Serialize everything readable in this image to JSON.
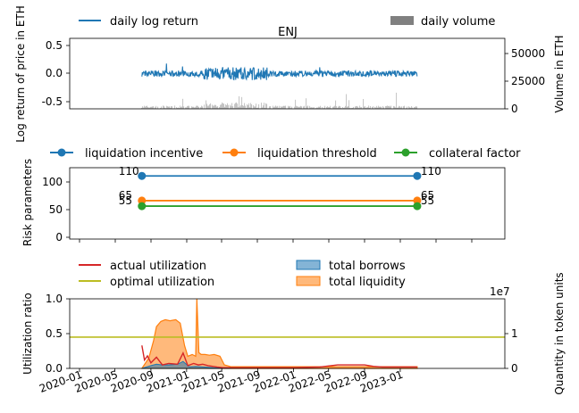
{
  "chart_data": [
    {
      "type": "line",
      "title": "ENJ",
      "ylabel": "Log return of price in ETH",
      "y2label": "Volume in ETH",
      "ylim": [
        -0.6,
        0.6
      ],
      "y2lim": [
        0,
        65000
      ],
      "yticks": [
        "0.5",
        "0.0",
        "-0.5"
      ],
      "y2ticks": [
        "50000",
        "25000",
        "0"
      ],
      "legend": [
        {
          "label": "daily log return",
          "color": "#1f77b4",
          "kind": "line"
        },
        {
          "label": "daily volume",
          "color": "#808080",
          "kind": "patch"
        }
      ],
      "series": [
        {
          "name": "daily log return",
          "color": "#1f77b4",
          "x_range": [
            "2020-08-01",
            "2023-02-28"
          ],
          "values_approx": {
            "typical_abs": 0.05,
            "max": 0.38,
            "min": -0.22
          }
        },
        {
          "name": "daily volume",
          "color": "#808080",
          "x_range": [
            "2020-08-01",
            "2023-02-28"
          ],
          "values_approx": {
            "typical": 3000,
            "max": 15000
          }
        }
      ]
    },
    {
      "type": "line",
      "ylabel": "Risk parameters",
      "ylim": [
        -5,
        125
      ],
      "yticks": [
        "100",
        "50",
        "0"
      ],
      "legend_placement": "top",
      "x": [
        "2020-08-01",
        "2023-02-28"
      ],
      "series": [
        {
          "name": "liquidation incentive",
          "color": "#1f77b4",
          "values": [
            110,
            110
          ],
          "labels": [
            "110",
            "110"
          ]
        },
        {
          "name": "liquidation threshold",
          "color": "#ff7f0e",
          "values": [
            65,
            65
          ],
          "labels": [
            "65",
            "65"
          ]
        },
        {
          "name": "collateral factor",
          "color": "#2ca02c",
          "values": [
            55,
            55
          ],
          "labels": [
            "55",
            "55"
          ]
        }
      ]
    },
    {
      "type": "area",
      "ylabel": "Utilization ratio",
      "y2label": "Quantity in token units",
      "y2_offset": "1e7",
      "ylim": [
        0,
        1.0
      ],
      "yticks": [
        "1.0",
        "0.5",
        "0.0"
      ],
      "y2ticks": [
        "1",
        "0"
      ],
      "xticks": [
        "2020-01",
        "2020-05",
        "2020-09",
        "2021-01",
        "2021-05",
        "2021-09",
        "2022-01",
        "2022-05",
        "2022-09",
        "2023-01"
      ],
      "legend": [
        {
          "label": "actual utilization",
          "color": "#d62728",
          "kind": "line"
        },
        {
          "label": "optimal utilization",
          "color": "#bcbd22",
          "kind": "line"
        },
        {
          "label": "total borrows",
          "color": "#1f77b4",
          "kind": "patch"
        },
        {
          "label": "total liquidity",
          "color": "#ff7f0e",
          "kind": "patch"
        }
      ],
      "series": [
        {
          "name": "optimal utilization",
          "color": "#bcbd22",
          "x": [
            "2019-12-01",
            "2023-03-31"
          ],
          "values": [
            0.45,
            0.45
          ]
        },
        {
          "name": "actual utilization",
          "color": "#d62728",
          "x": [
            "2020-08-01",
            "2020-08-10",
            "2020-08-20",
            "2020-09-01",
            "2020-09-20",
            "2020-10-10",
            "2020-11-01",
            "2020-12-01",
            "2020-12-20",
            "2021-01-05",
            "2021-01-25",
            "2021-02-10",
            "2021-02-25",
            "2021-03-15",
            "2021-04-15",
            "2021-05-05",
            "2021-06-01",
            "2021-09-01",
            "2022-01-01",
            "2022-04-01",
            "2022-06-01",
            "2022-09-01",
            "2022-10-01",
            "2022-11-01",
            "2023-01-01",
            "2023-02-28"
          ],
          "values": [
            0.33,
            0.12,
            0.18,
            0.08,
            0.16,
            0.05,
            0.07,
            0.06,
            0.22,
            0.04,
            0.07,
            0.05,
            0.06,
            0.04,
            0.02,
            0.01,
            0.01,
            0.01,
            0.01,
            0.02,
            0.05,
            0.05,
            0.03,
            0.02,
            0.02,
            0.02
          ]
        },
        {
          "name": "total liquidity",
          "color": "#ff7f0e",
          "unit_scale": "1e7",
          "x": [
            "2020-08-01",
            "2020-08-25",
            "2020-09-10",
            "2020-09-20",
            "2020-10-05",
            "2020-10-20",
            "2020-11-05",
            "2020-11-25",
            "2020-12-10",
            "2020-12-25",
            "2021-01-05",
            "2021-01-20",
            "2021-02-01",
            "2021-02-05",
            "2021-02-12",
            "2021-02-20",
            "2021-03-05",
            "2021-03-20",
            "2021-04-05",
            "2021-04-25",
            "2021-05-10",
            "2021-06-01",
            "2023-02-28"
          ],
          "values": [
            0.0,
            0.3,
            0.8,
            1.2,
            1.35,
            1.4,
            1.37,
            1.4,
            1.3,
            0.65,
            0.35,
            0.4,
            0.35,
            2.0,
            0.45,
            0.4,
            0.4,
            0.38,
            0.4,
            0.35,
            0.1,
            0.05,
            0.05
          ]
        },
        {
          "name": "total borrows",
          "color": "#1f77b4",
          "unit_scale": "1e7",
          "x": [
            "2020-08-01",
            "2020-09-01",
            "2020-09-20",
            "2020-10-10",
            "2020-11-01",
            "2020-12-01",
            "2020-12-20",
            "2021-01-10",
            "2021-02-01",
            "2021-03-01",
            "2021-04-01",
            "2021-05-01",
            "2021-06-01"
          ],
          "values": [
            0.0,
            0.08,
            0.12,
            0.1,
            0.1,
            0.12,
            0.2,
            0.05,
            0.06,
            0.04,
            0.02,
            0.01,
            0.0
          ]
        }
      ]
    }
  ]
}
